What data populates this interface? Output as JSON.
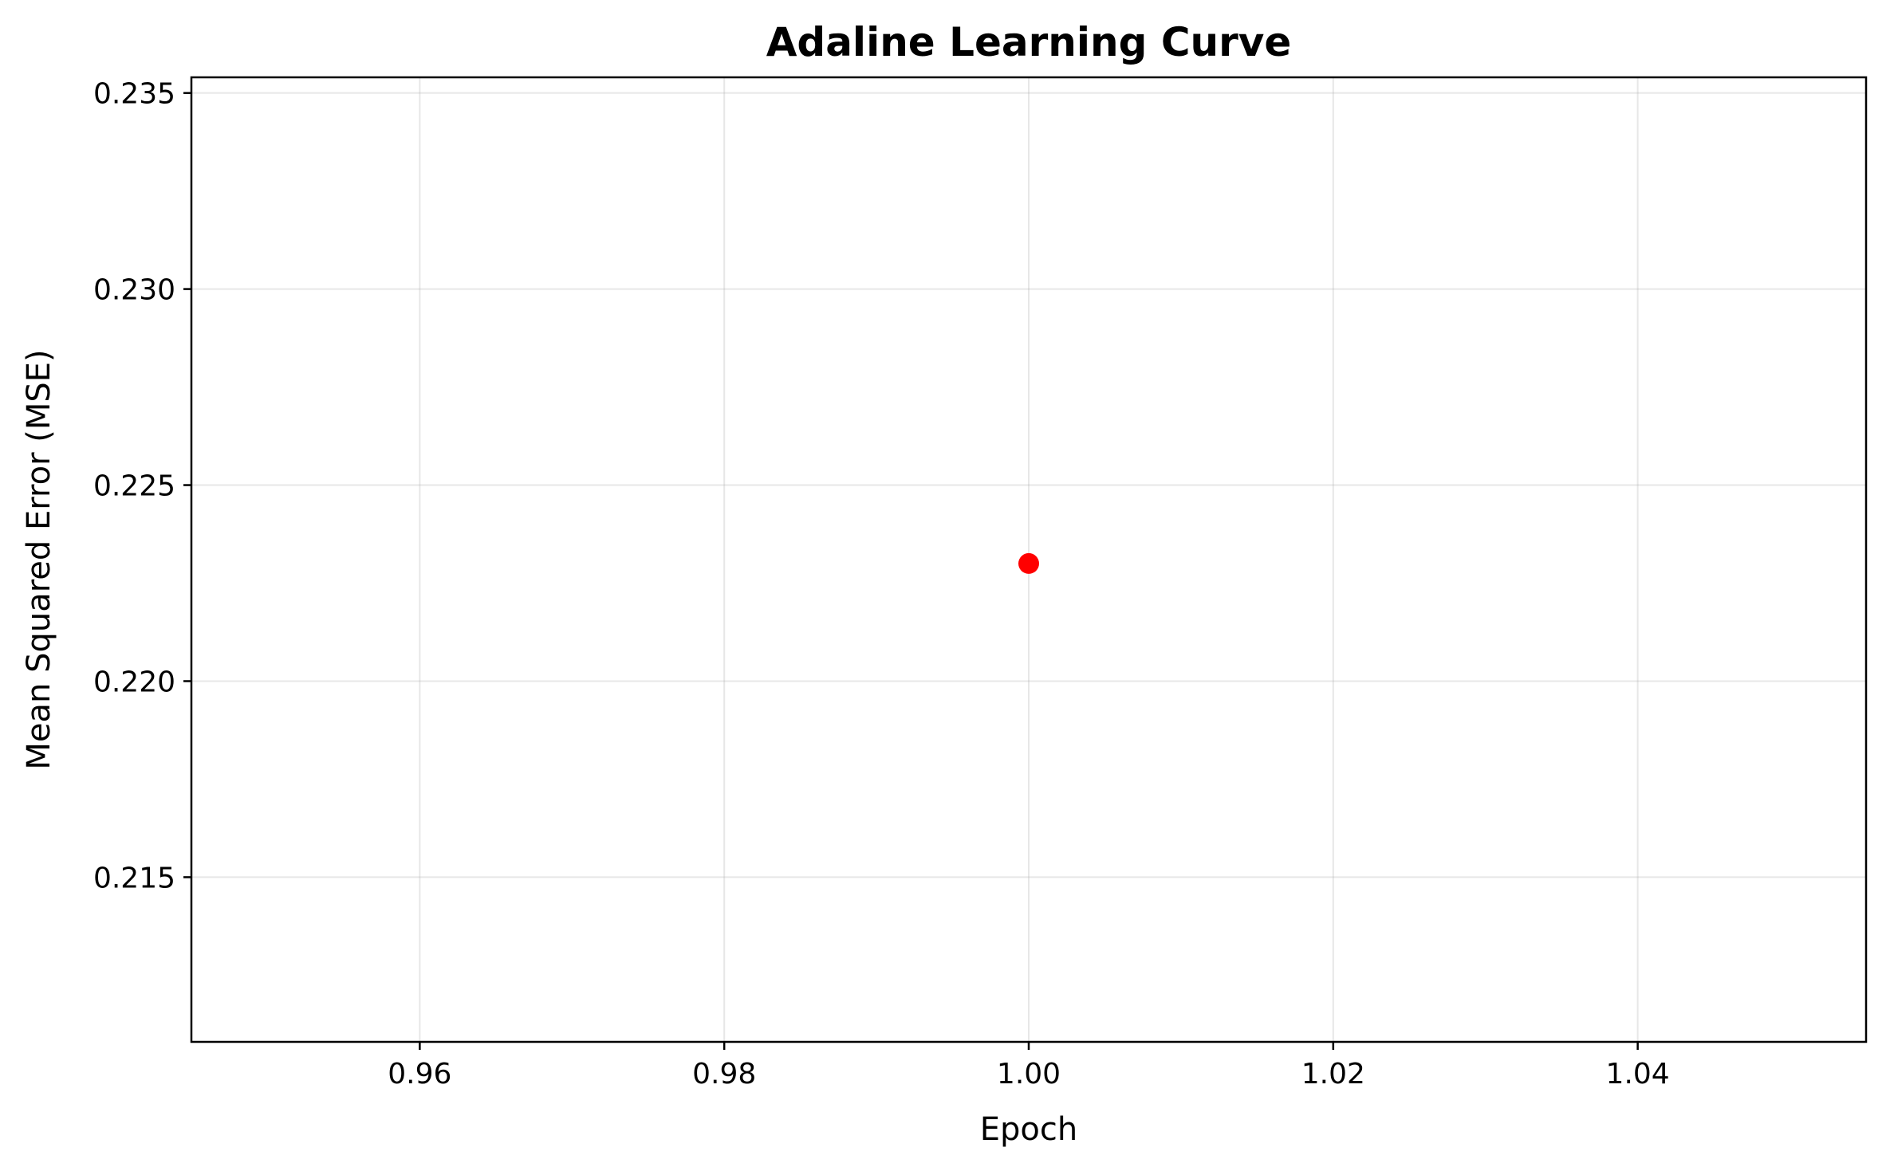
{
  "chart_data": {
    "type": "line",
    "title": "Adaline Learning Curve",
    "xlabel": "Epoch",
    "ylabel": "Mean Squared Error (MSE)",
    "xlim": [
      0.945,
      1.055
    ],
    "ylim": [
      0.2108,
      0.2354
    ],
    "xticks": [
      "0.96",
      "0.98",
      "1.00",
      "1.02",
      "1.04"
    ],
    "xtick_values": [
      0.96,
      0.98,
      1.0,
      1.02,
      1.04
    ],
    "yticks": [
      "0.215",
      "0.220",
      "0.225",
      "0.230",
      "0.235"
    ],
    "ytick_values": [
      0.215,
      0.22,
      0.225,
      0.23,
      0.235
    ],
    "grid": true,
    "legend": "none",
    "series": [
      {
        "x": [
          1
        ],
        "y": [
          0.223
        ],
        "color": "#ff0000",
        "marker": "circle"
      }
    ]
  }
}
